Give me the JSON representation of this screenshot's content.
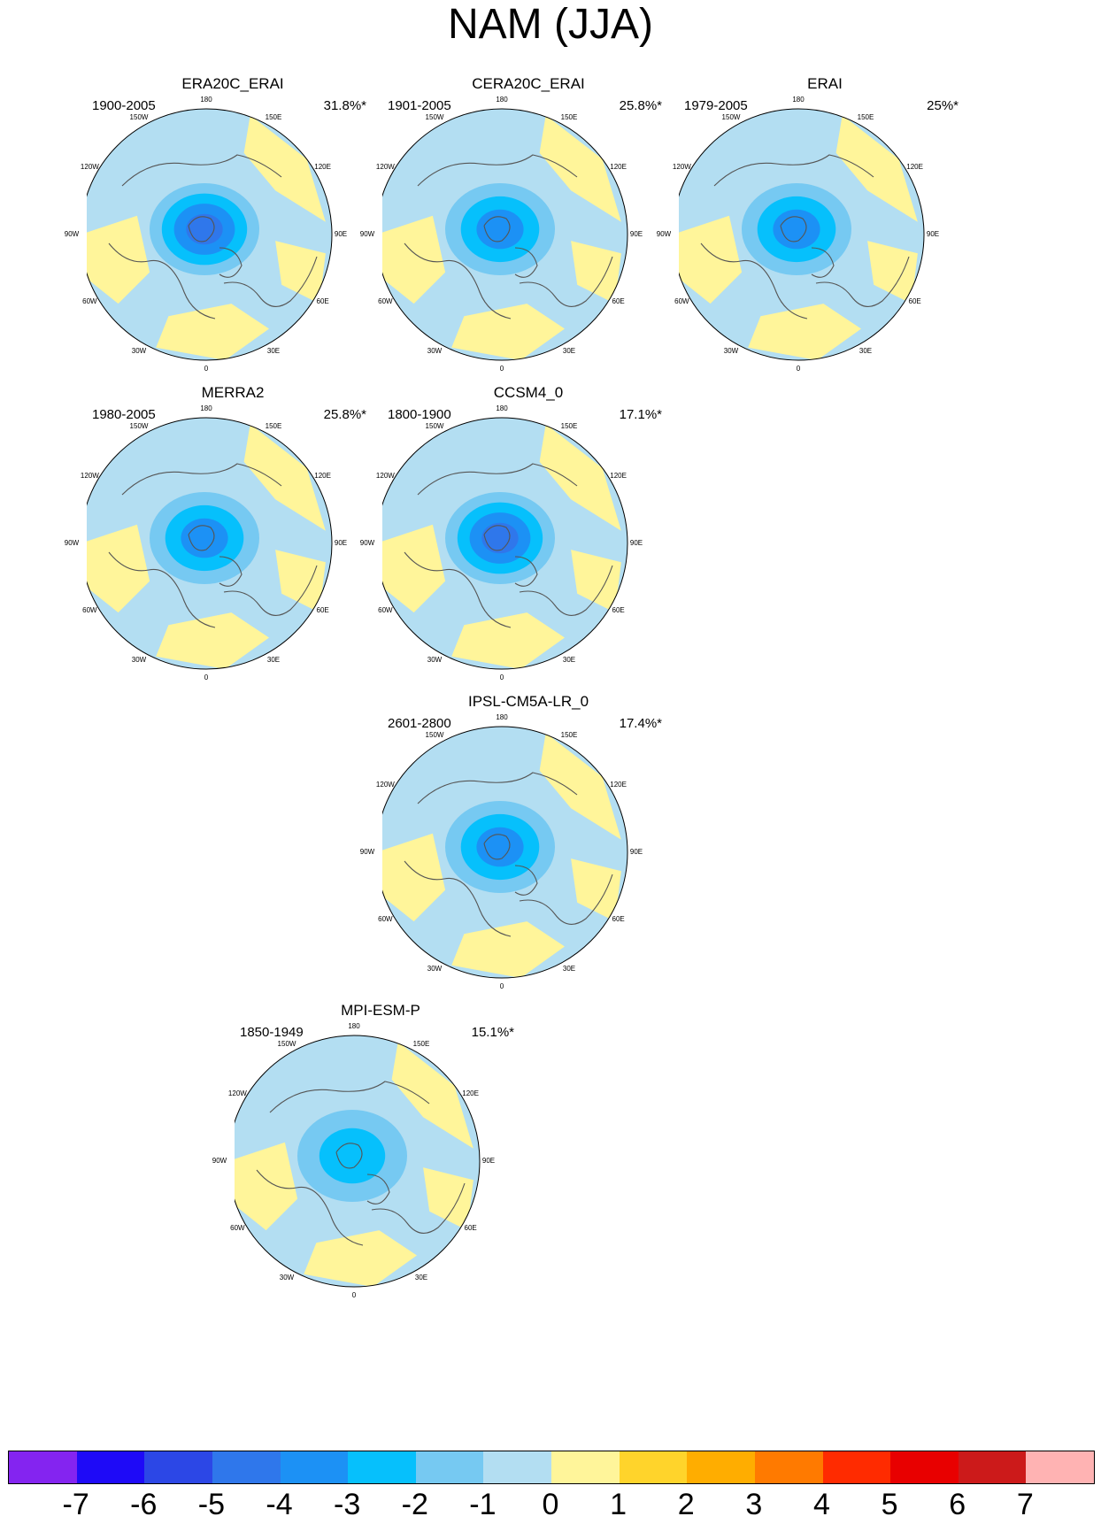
{
  "title": "NAM (JJA)",
  "lon_labels": [
    "180",
    "150E",
    "120E",
    "90E",
    "60E",
    "30E",
    "0",
    "30W",
    "60W",
    "90W",
    "120W",
    "150W"
  ],
  "panels": [
    {
      "title": "ERA20C_ERAI",
      "years": "1900-2005",
      "percent": "31.8%*",
      "min_value": -4
    },
    {
      "title": "CERA20C_ERAI",
      "years": "1901-2005",
      "percent": "25.8%*",
      "min_value": -3
    },
    {
      "title": "ERAI",
      "years": "1979-2005",
      "percent": "25%*",
      "min_value": -3
    },
    {
      "title": "MERRA2",
      "years": "1980-2005",
      "percent": "25.8%*",
      "min_value": -3
    },
    {
      "title": "CCSM4_0",
      "years": "1800-1900",
      "percent": "17.1%*",
      "min_value": -4
    },
    {
      "title": "IPSL-CM5A-LR_0",
      "years": "2601-2800",
      "percent": "17.4%*",
      "min_value": -3
    },
    {
      "title": "MPI-ESM-P",
      "years": "1850-1949",
      "percent": "15.1%*",
      "min_value": -2
    }
  ],
  "colorbar": {
    "colors": [
      "#8424f0",
      "#1e0af7",
      "#2c47e6",
      "#2f77eb",
      "#1c91f5",
      "#06c0fc",
      "#76c9f2",
      "#b3def2",
      "#fff59a",
      "#ffd42b",
      "#ffad00",
      "#ff7a00",
      "#ff2b00",
      "#e80000",
      "#cc1a1a",
      "#ffb3b3"
    ],
    "labels": [
      "-7",
      "-6",
      "-5",
      "-4",
      "-3",
      "-2",
      "-1",
      "0",
      "1",
      "2",
      "3",
      "4",
      "5",
      "6",
      "7"
    ]
  }
}
